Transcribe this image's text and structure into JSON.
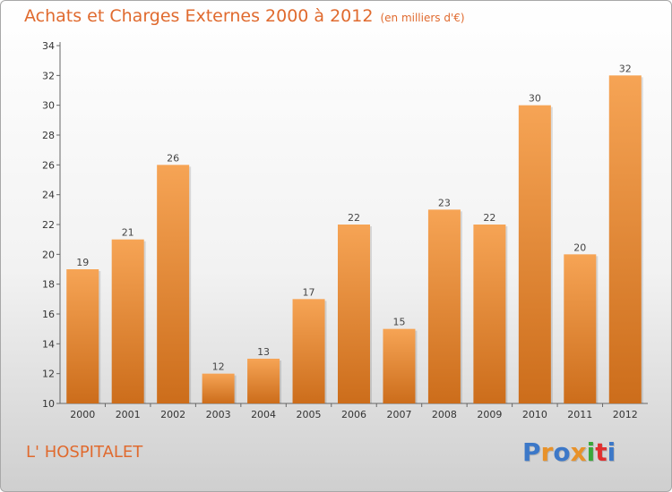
{
  "chart_data": {
    "type": "bar",
    "title": "Achats et Charges Externes 2000 à 2012",
    "subtitle": "(en milliers d'€)",
    "categories": [
      "2000",
      "2001",
      "2002",
      "2003",
      "2004",
      "2005",
      "2006",
      "2007",
      "2008",
      "2009",
      "2010",
      "2011",
      "2012"
    ],
    "values": [
      19,
      21,
      26,
      12,
      13,
      17,
      22,
      15,
      23,
      22,
      30,
      20,
      32
    ],
    "xlabel": "",
    "ylabel": "",
    "ylim": [
      10,
      34
    ],
    "yticks": [
      10,
      12,
      14,
      16,
      18,
      20,
      22,
      24,
      26,
      28,
      30,
      32,
      34
    ],
    "grid": false,
    "data_labels": true,
    "bar_color_top": "#f6a455",
    "bar_color_bottom": "#cc6d1b"
  },
  "footer": {
    "commune": "L' HOSPITALET",
    "logo_letters": [
      "P",
      "r",
      "o",
      "x",
      "i",
      "t",
      "i"
    ],
    "logo_colors": [
      "#3c78c8",
      "#e8922a",
      "#3c78c8",
      "#e8922a",
      "#3aa83a",
      "#e03030",
      "#3c78c8"
    ]
  },
  "colors": {
    "accent": "#e06a2e",
    "axis": "#666666"
  }
}
